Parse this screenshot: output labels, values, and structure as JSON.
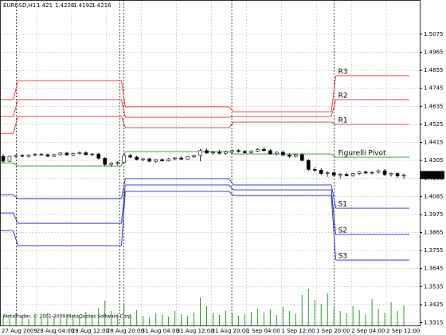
{
  "chart_data": {
    "type": "candlestick",
    "title": "EURUSD,H1",
    "annotation": "MetaTrader, © 2001-2009 MetaQuotes Software Corp.",
    "x_labels": [
      "27 Aug 2009",
      "28 Aug 04:00",
      "28 Aug 12:00",
      "28 Aug 20:00",
      "31 Aug 04:00",
      "31 Aug 12:00",
      "31 Aug 20:00",
      "1 Sep 04:00",
      "1 Sep 12:00",
      "1 Sep 20:00",
      "2 Sep 04:00",
      "2 Sep 12:00"
    ],
    "xlim": [
      -0.5,
      65.5
    ],
    "ylim": [
      1.3298,
      1.5284
    ],
    "yticks": [
      1.5075,
      1.4965,
      1.4855,
      1.4745,
      1.4635,
      1.4525,
      1.4415,
      1.4305,
      1.4195,
      1.4085,
      1.3975,
      1.3865,
      1.3755,
      1.3645,
      1.3535,
      1.3425,
      1.3315
    ],
    "grid": true,
    "candles": [
      [
        1.433,
        1.4345,
        1.429,
        1.43
      ],
      [
        1.43,
        1.4335,
        1.4295,
        1.433
      ],
      [
        1.433,
        1.434,
        1.432,
        1.4335
      ],
      [
        1.4335,
        1.4345,
        1.4325,
        1.433
      ],
      [
        1.433,
        1.4342,
        1.4322,
        1.4338
      ],
      [
        1.4338,
        1.435,
        1.433,
        1.4342
      ],
      [
        1.4342,
        1.4352,
        1.4335,
        1.434
      ],
      [
        1.434,
        1.4348,
        1.4325,
        1.433
      ],
      [
        1.433,
        1.4345,
        1.4325,
        1.434
      ],
      [
        1.434,
        1.4355,
        1.4335,
        1.435
      ],
      [
        1.435,
        1.4358,
        1.4336,
        1.4338
      ],
      [
        1.4338,
        1.4352,
        1.4332,
        1.4346
      ],
      [
        1.4346,
        1.436,
        1.434,
        1.4352
      ],
      [
        1.4352,
        1.4362,
        1.4335,
        1.434
      ],
      [
        1.434,
        1.435,
        1.433,
        1.4344
      ],
      [
        1.4344,
        1.435,
        1.431,
        1.4318
      ],
      [
        1.4318,
        1.4325,
        1.427,
        1.428
      ],
      [
        1.428,
        1.4295,
        1.4265,
        1.4288
      ],
      [
        1.4288,
        1.43,
        1.4275,
        1.4292
      ],
      [
        1.4292,
        1.434,
        1.4288,
        1.4335
      ],
      [
        1.4335,
        1.4345,
        1.432,
        1.4325
      ],
      [
        1.4325,
        1.4335,
        1.4305,
        1.431
      ],
      [
        1.431,
        1.432,
        1.43,
        1.4315
      ],
      [
        1.4315,
        1.4322,
        1.4295,
        1.43
      ],
      [
        1.43,
        1.4315,
        1.429,
        1.431
      ],
      [
        1.431,
        1.4318,
        1.4298,
        1.4302
      ],
      [
        1.4302,
        1.432,
        1.4298,
        1.4315
      ],
      [
        1.4315,
        1.4325,
        1.4305,
        1.432
      ],
      [
        1.432,
        1.433,
        1.431,
        1.4312
      ],
      [
        1.4312,
        1.433,
        1.4308,
        1.4328
      ],
      [
        1.4328,
        1.434,
        1.432,
        1.4335
      ],
      [
        1.4335,
        1.4375,
        1.43,
        1.4365
      ],
      [
        1.4365,
        1.4378,
        1.4345,
        1.435
      ],
      [
        1.435,
        1.4362,
        1.434,
        1.4355
      ],
      [
        1.4355,
        1.4368,
        1.4342,
        1.4348
      ],
      [
        1.4348,
        1.4365,
        1.434,
        1.4358
      ],
      [
        1.4358,
        1.4372,
        1.435,
        1.4365
      ],
      [
        1.4365,
        1.4375,
        1.4352,
        1.436
      ],
      [
        1.436,
        1.437,
        1.4348,
        1.4352
      ],
      [
        1.4352,
        1.4368,
        1.4345,
        1.4362
      ],
      [
        1.4362,
        1.438,
        1.4355,
        1.4372
      ],
      [
        1.4372,
        1.4385,
        1.436,
        1.4365
      ],
      [
        1.4365,
        1.4375,
        1.434,
        1.4345
      ],
      [
        1.4345,
        1.436,
        1.4335,
        1.4355
      ],
      [
        1.4355,
        1.4365,
        1.433,
        1.4338
      ],
      [
        1.4338,
        1.435,
        1.432,
        1.433
      ],
      [
        1.433,
        1.4345,
        1.4322,
        1.434
      ],
      [
        1.434,
        1.4348,
        1.43,
        1.4305
      ],
      [
        1.4305,
        1.4315,
        1.424,
        1.425
      ],
      [
        1.425,
        1.4265,
        1.4232,
        1.4245
      ],
      [
        1.4245,
        1.4258,
        1.4215,
        1.4225
      ],
      [
        1.4225,
        1.424,
        1.4205,
        1.423
      ],
      [
        1.423,
        1.4238,
        1.4205,
        1.4215
      ],
      [
        1.4215,
        1.4228,
        1.4195,
        1.422
      ],
      [
        1.422,
        1.4232,
        1.4208,
        1.4212
      ],
      [
        1.4212,
        1.423,
        1.4205,
        1.4225
      ],
      [
        1.4225,
        1.424,
        1.4215,
        1.4235
      ],
      [
        1.4235,
        1.4245,
        1.422,
        1.4228
      ],
      [
        1.4228,
        1.424,
        1.4218,
        1.4232
      ],
      [
        1.4232,
        1.425,
        1.4225,
        1.4242
      ],
      [
        1.4242,
        1.4252,
        1.421,
        1.4218
      ],
      [
        1.4218,
        1.423,
        1.4205,
        1.4225
      ],
      [
        1.4225,
        1.4232,
        1.42,
        1.421
      ],
      [
        1.421,
        1.4226,
        1.4192,
        1.4216
      ]
    ],
    "volume": [
      1200,
      900,
      1500,
      1100,
      800,
      1300,
      1000,
      1600,
      1200,
      900,
      1400,
      1100,
      1000,
      1700,
      1300,
      2200,
      3100,
      1800,
      1500,
      2600,
      1400,
      1900,
      1200,
      1000,
      1500,
      1300,
      1100,
      1800,
      1400,
      1200,
      1600,
      3500,
      2400,
      1600,
      1300,
      1800,
      1500,
      1200,
      1400,
      1700,
      2100,
      1600,
      2000,
      1300,
      2300,
      1800,
      1500,
      3800,
      4600,
      3200,
      2700,
      4000,
      2200,
      1800,
      1500,
      2400,
      1900,
      1400,
      3300,
      2100,
      1600,
      2900,
      1800,
      2500
    ],
    "levels": [
      {
        "name": "R3",
        "color": "#e03030"
      },
      {
        "name": "R2",
        "color": "#e03030"
      },
      {
        "name": "R1",
        "color": "#e03030"
      },
      {
        "name": "Figurelli Pivot",
        "color": "#2a9a2a"
      },
      {
        "name": "S1",
        "color": "#2525cc"
      },
      {
        "name": "S2",
        "color": "#2525cc"
      },
      {
        "name": "S3",
        "color": "#2525cc"
      }
    ],
    "periods": [
      {
        "from": -0.5,
        "to": 1.6,
        "values": [
          1.4676,
          1.4573,
          1.447,
          1.429,
          1.4096,
          1.3984,
          1.3877
        ]
      },
      {
        "from": 2.3,
        "to": 18.6,
        "values": [
          1.4792,
          1.4676,
          1.4573,
          1.4271,
          1.4072,
          1.3921,
          1.3785
        ]
      },
      {
        "from": 19.2,
        "to": 35.5,
        "values": [
          1.4632,
          1.4568,
          1.4505,
          1.4359,
          1.4194,
          1.4155,
          1.4116
        ]
      },
      {
        "from": 36.2,
        "to": 51.6,
        "values": [
          1.4602,
          1.4573,
          1.4539,
          1.4344,
          1.4155,
          1.4125,
          1.4091
        ]
      },
      {
        "from": 52.3,
        "to": 63.9,
        "values": [
          1.4822,
          1.4676,
          1.4525,
          1.4325,
          1.4013,
          1.3853,
          1.3697
        ]
      }
    ]
  }
}
